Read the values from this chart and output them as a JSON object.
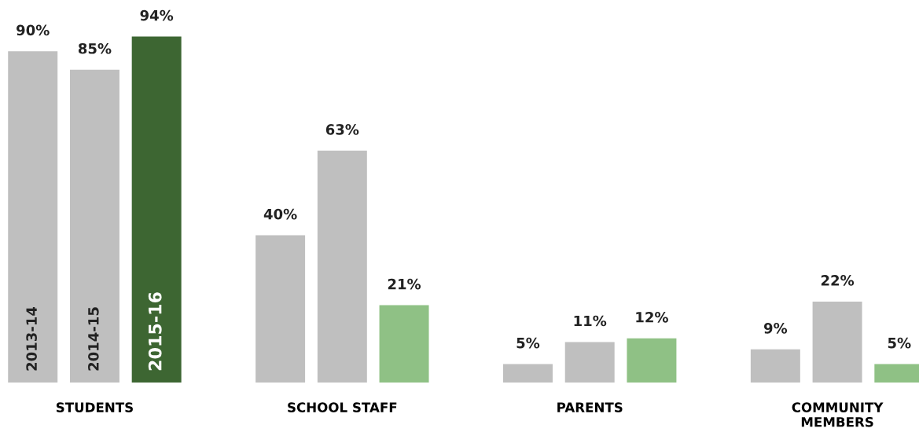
{
  "chart_data": {
    "type": "bar",
    "categories": [
      "STUDENTS",
      "SCHOOL STAFF",
      "PARENTS",
      "COMMUNITY\nMEMBERS"
    ],
    "series": [
      {
        "name": "2013-14",
        "color": "#bfbfbf",
        "values": [
          90,
          40,
          5,
          9
        ],
        "value_labels": [
          "90%",
          "40%",
          "5%",
          "9%"
        ]
      },
      {
        "name": "2014-15",
        "color": "#bfbfbf",
        "values": [
          85,
          63,
          11,
          22
        ],
        "value_labels": [
          "85%",
          "63%",
          "11%",
          "22%"
        ]
      },
      {
        "name": "2015-16",
        "colors": [
          "#3d6632",
          "#8fc185",
          "#8fc185",
          "#8fc185"
        ],
        "values": [
          94,
          21,
          12,
          5
        ],
        "value_labels": [
          "94%",
          "21%",
          "12%",
          "5%"
        ]
      }
    ],
    "legend": false,
    "grid": false,
    "tick_labels": "x"
  }
}
